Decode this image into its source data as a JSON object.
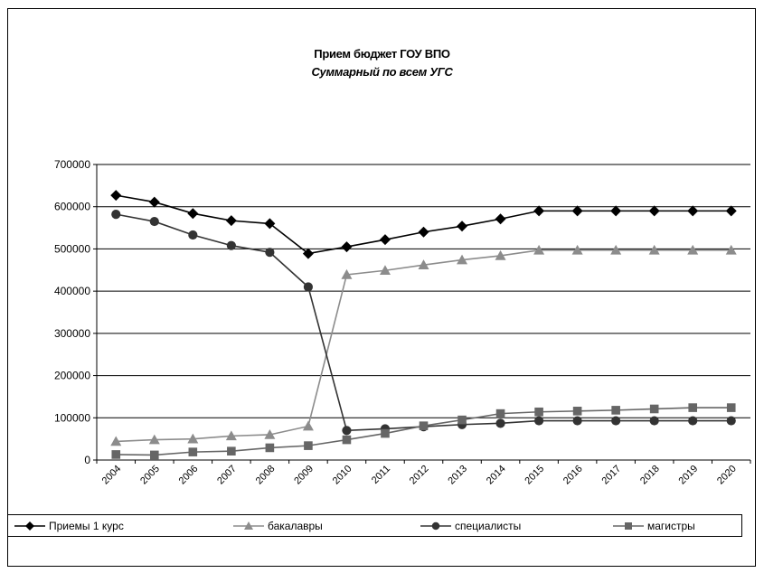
{
  "title": "Прием бюджет ГОУ ВПО",
  "subtitle": "Суммарный по всем УГС",
  "chart_data": {
    "type": "line",
    "title": "Прием бюджет ГОУ ВПО",
    "subtitle": "Суммарный по всем УГС",
    "xlabel": "",
    "ylabel": "",
    "categories": [
      "2004",
      "2005",
      "2006",
      "2007",
      "2008",
      "2009",
      "2010",
      "2011",
      "2012",
      "2013",
      "2014",
      "2015",
      "2016",
      "2017",
      "2018",
      "2019",
      "2020"
    ],
    "yticks": [
      "0",
      "100000",
      "200000",
      "300000",
      "400000",
      "500000",
      "600000",
      "700000"
    ],
    "ylim": [
      0,
      700000
    ],
    "grid": "horizontal",
    "legend_position": "bottom",
    "series": [
      {
        "name": "Приемы 1 курс",
        "marker": "diamond",
        "color": "#000000",
        "values": [
          627000,
          611000,
          584000,
          567000,
          560000,
          489000,
          505000,
          522000,
          540000,
          554000,
          571000,
          590000,
          590000,
          590000,
          590000,
          590000,
          590000
        ]
      },
      {
        "name": "бакалавры",
        "marker": "triangle",
        "color": "#8c8c8c",
        "values": [
          44000,
          48000,
          50000,
          57000,
          60000,
          80000,
          439000,
          449000,
          462000,
          474000,
          484000,
          497000,
          497000,
          497000,
          497000,
          497000,
          497000
        ]
      },
      {
        "name": "специалисты",
        "marker": "circle",
        "color": "#333333",
        "values": [
          582000,
          565000,
          533000,
          508000,
          492000,
          410000,
          70000,
          74000,
          79000,
          84000,
          87000,
          93000,
          93000,
          93000,
          93000,
          93000,
          93000
        ]
      },
      {
        "name": "магистры",
        "marker": "square",
        "color": "#666666",
        "values": [
          13000,
          12000,
          19000,
          21000,
          29000,
          34000,
          48000,
          63000,
          81000,
          95000,
          110000,
          114000,
          116000,
          118000,
          121000,
          124000,
          124000
        ]
      }
    ]
  }
}
